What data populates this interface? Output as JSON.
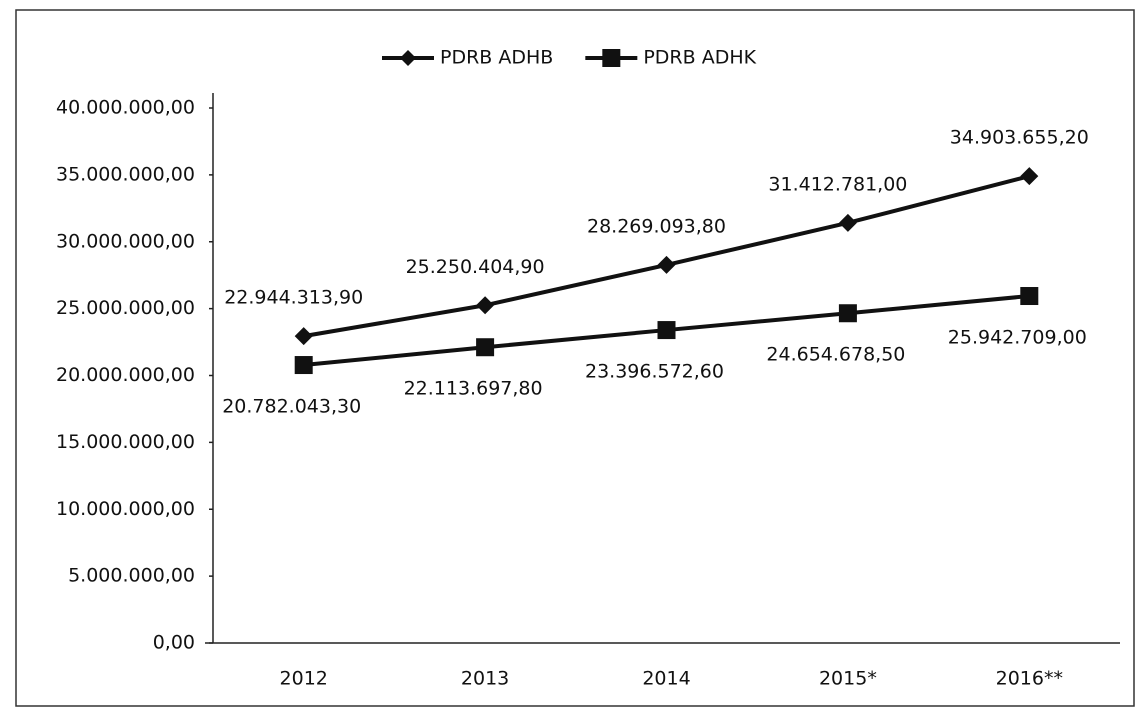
{
  "chart_data": {
    "type": "line",
    "categories": [
      "2012",
      "2013",
      "2014",
      "2015*",
      "2016**"
    ],
    "series": [
      {
        "name": "PDRB ADHB",
        "color": "#111111",
        "marker": "diamond",
        "values": [
          22944313.9,
          25250404.9,
          28269093.8,
          31412781.0,
          34903655.2
        ],
        "value_labels": [
          "22.944.313,90",
          "25.250.404,90",
          "28.269.093,80",
          "31.412.781,00",
          "34.903.655,20"
        ]
      },
      {
        "name": "PDRB ADHK",
        "color": "#111111",
        "marker": "square",
        "values": [
          20782043.3,
          22113697.8,
          23396572.6,
          24654678.5,
          25942709.0
        ],
        "value_labels": [
          "20.782.043,30",
          "22.113.697,80",
          "23.396.572,60",
          "24.654.678,50",
          "25.942.709,00"
        ]
      }
    ],
    "ylim": [
      0,
      40000000
    ],
    "yticks": [
      {
        "value": 0,
        "label": "0,00"
      },
      {
        "value": 5000000,
        "label": "5.000.000,00"
      },
      {
        "value": 10000000,
        "label": "10.000.000,00"
      },
      {
        "value": 15000000,
        "label": "15.000.000,00"
      },
      {
        "value": 20000000,
        "label": "20.000.000,00"
      },
      {
        "value": 25000000,
        "label": "25.000.000,00"
      },
      {
        "value": 30000000,
        "label": "30.000.000,00"
      },
      {
        "value": 35000000,
        "label": "35.000.000,00"
      },
      {
        "value": 40000000,
        "label": "40.000.000,00"
      }
    ],
    "grid": false,
    "legend": "top"
  }
}
